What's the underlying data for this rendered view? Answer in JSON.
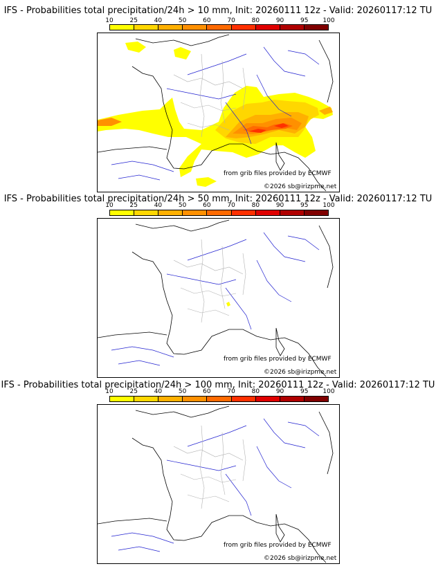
{
  "panels": [
    {
      "title": "IFS - Probabilities total precipitation/24h > 10 mm, Init: 20260111 12z - Valid: 20260117:12 TU",
      "credit_source": "from grib files provided by ECMWF",
      "credit_copyright": "©2026 sb@irizpme.net"
    },
    {
      "title": "IFS - Probabilities total precipitation/24h > 50 mm, Init: 20260111 12z - Valid: 20260117:12 TU",
      "credit_source": "from grib files provided by ECMWF",
      "credit_copyright": "©2026 sb@irizpme.net"
    },
    {
      "title": "IFS - Probabilities total precipitation/24h > 100 mm, Init: 20260111 12z - Valid: 20260117:12 TU",
      "credit_source": "from grib files provided by ECMWF",
      "credit_copyright": "©2026 sb@irizpme.net"
    }
  ],
  "colorbar": {
    "ticks": [
      "10",
      "25",
      "40",
      "50",
      "60",
      "70",
      "80",
      "90",
      "95",
      "100"
    ],
    "colors": [
      "#ffff00",
      "#ffd700",
      "#ffb000",
      "#ff9000",
      "#ff6a00",
      "#ff3000",
      "#e00000",
      "#b00000",
      "#800000"
    ]
  },
  "map_colors": {
    "coast": "#000000",
    "rivers": "#2020d0",
    "borders": "#b0b0b0",
    "land": "#ffffff"
  }
}
